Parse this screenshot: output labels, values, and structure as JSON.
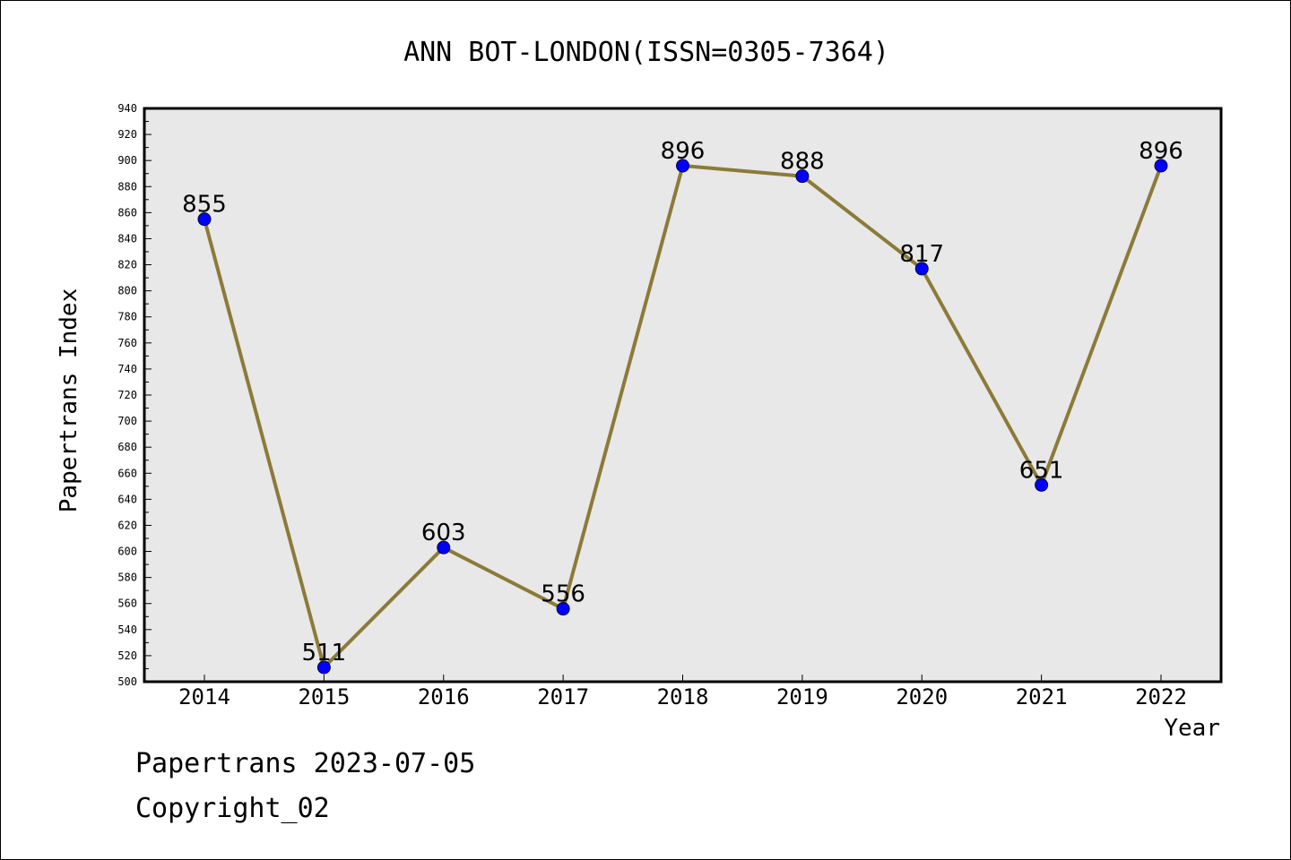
{
  "chart_data": {
    "type": "line",
    "title": "ANN BOT-LONDON(ISSN=0305-7364)",
    "xlabel": "Year",
    "ylabel": "Papertrans Index",
    "categories": [
      "2014",
      "2015",
      "2016",
      "2017",
      "2018",
      "2019",
      "2020",
      "2021",
      "2022"
    ],
    "series": [
      {
        "values": [
          855,
          511,
          603,
          556,
          896,
          888,
          817,
          651,
          896
        ]
      }
    ],
    "ylim": [
      500,
      940
    ],
    "yticks": [
      500,
      520,
      540,
      560,
      580,
      600,
      620,
      640,
      660,
      680,
      700,
      720,
      740,
      760,
      780,
      800,
      820,
      840,
      860,
      880,
      900,
      920,
      940
    ],
    "data_labels": true,
    "grid": false,
    "legend": "none",
    "colors": {
      "line": "#8c7a38",
      "marker": "#0000ff",
      "plot_background": "#e8e8e8",
      "frame": "#000000"
    }
  },
  "footer": {
    "date_line": "Papertrans 2023-07-05",
    "copyright_line": "Copyright_02"
  }
}
